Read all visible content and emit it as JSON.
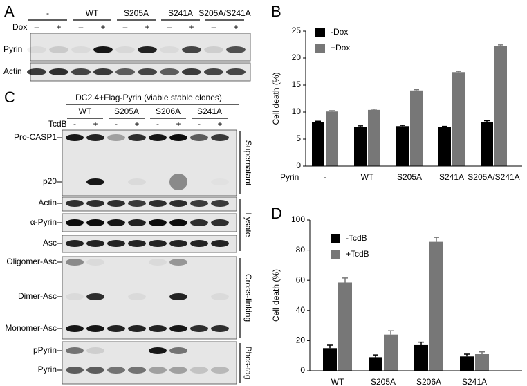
{
  "panel_a": {
    "label": "A",
    "groups": [
      "-",
      "WT",
      "S205A",
      "S241A",
      "S205A/S241A"
    ],
    "treatment": "Dox",
    "signs": [
      "–",
      "+",
      "–",
      "+",
      "–",
      "+",
      "–",
      "+",
      "–",
      "+"
    ],
    "rows": [
      "Pyrin",
      "Actin"
    ]
  },
  "panel_c": {
    "label": "C",
    "header": "DC2.4+Flag-Pyrin (viable stable clones)",
    "groups": [
      "WT",
      "S205A",
      "S206A",
      "S241A"
    ],
    "treatment": "TcdB",
    "signs": [
      "-",
      "+",
      "-",
      "+",
      "-",
      "+",
      "-",
      "+"
    ],
    "sections": [
      {
        "name": "Supernatant",
        "rows": [
          "Pro-CASP1",
          "p20"
        ]
      },
      {
        "name": "Lysate",
        "rows": [
          "Actin",
          "α-Pyrin",
          "Asc"
        ]
      },
      {
        "name": "Cross-linking",
        "rows": [
          "Oligomer-Asc",
          "Dimer-Asc",
          "Monomer-Asc"
        ]
      },
      {
        "name": "Phos-tag",
        "rows": [
          "pPyrin",
          "Pyrin"
        ]
      }
    ]
  },
  "chart_data": [
    {
      "type": "bar",
      "panel_label": "B",
      "y_label": "Cell death (%)",
      "x_label": "Pyrin",
      "categories": [
        "-",
        "WT",
        "S205A",
        "S241A",
        "S205A/S241A"
      ],
      "ylim": [
        0,
        25
      ],
      "yticks": [
        0,
        5,
        10,
        15,
        20,
        25
      ],
      "legend": "upper left",
      "series": [
        {
          "name": "-Dox",
          "color": "#000000",
          "values": [
            8.1,
            7.3,
            7.4,
            7.2,
            8.2
          ],
          "errors": [
            0.2,
            0.15,
            0.15,
            0.15,
            0.2
          ]
        },
        {
          "name": "+Dox",
          "color": "#777777",
          "values": [
            10.1,
            10.4,
            14.0,
            17.4,
            22.3
          ],
          "errors": [
            0.15,
            0.15,
            0.15,
            0.15,
            0.15
          ]
        }
      ]
    },
    {
      "type": "bar",
      "panel_label": "D",
      "y_label": "Cell death (%)",
      "categories": [
        "WT",
        "S205A",
        "S206A",
        "S241A"
      ],
      "ylim": [
        0,
        100
      ],
      "yticks": [
        0,
        20,
        40,
        60,
        80,
        100
      ],
      "legend": "upper left",
      "series": [
        {
          "name": "-TcdB",
          "color": "#000000",
          "values": [
            15,
            9,
            17,
            9.5
          ],
          "errors": [
            2,
            1.5,
            2,
            1.5
          ]
        },
        {
          "name": "+TcdB",
          "color": "#777777",
          "values": [
            58.5,
            24,
            85.5,
            11
          ],
          "errors": [
            3,
            2.5,
            3,
            1.5
          ]
        }
      ]
    }
  ]
}
